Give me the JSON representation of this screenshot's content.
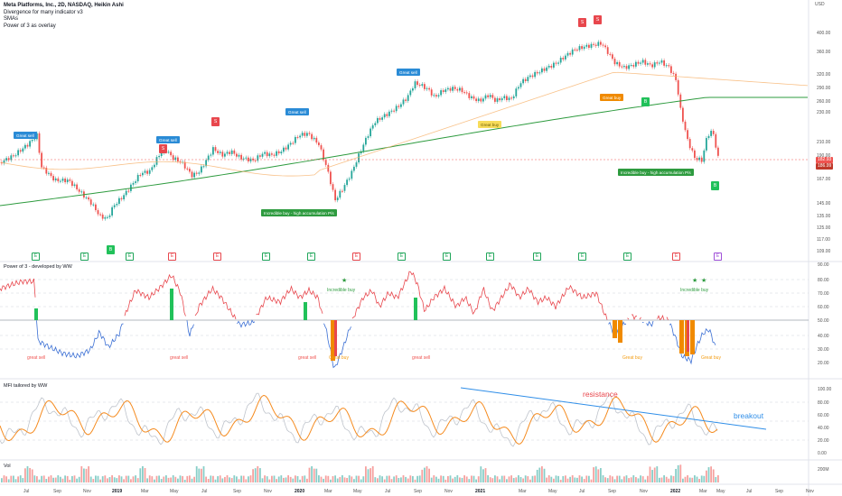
{
  "header": {
    "title": "Meta Platforms, Inc., 2D, NASDAQ, Heikin Ashi",
    "indicators": [
      "Divergence for many indicator v3",
      "SMAs",
      "Power of 3 as overlay"
    ],
    "currency": "USD",
    "price_axis": [
      "400.00",
      "360.00",
      "320.00",
      "290.00",
      "260.00",
      "230.00",
      "210.00",
      "190.00",
      "167.00",
      "145.00",
      "135.00",
      "125.00",
      "117.00",
      "109.00"
    ],
    "last_price": "182.93",
    "last_price_2": "186.99"
  },
  "main_annotations": {
    "great_sell": "Great sell",
    "great_buy": "Great buy",
    "incredible_buy": "Incredible buy - high accumulation P/s",
    "sell_marker": "S",
    "buy_marker": "B",
    "earn_marker": "E"
  },
  "power_pane": {
    "title": "Power of 3 - developed by WW",
    "axis": [
      "90.00",
      "80.00",
      "70.00",
      "60.00",
      "50.00",
      "40.00",
      "30.00",
      "20.00"
    ],
    "labels": {
      "great_sell": "great sell",
      "great_buy": "Great buy",
      "incredible_buy": "Incredible buy",
      "incredible_buy_short": "Incredible buy"
    }
  },
  "mfi_pane": {
    "title": "MFI tailored by WW",
    "axis": [
      "100.00",
      "80.00",
      "60.00",
      "40.00",
      "20.00",
      "0.00"
    ],
    "resistance": "resistance",
    "breakout": "breakout"
  },
  "vol_pane": {
    "title": "Vol",
    "axis": [
      "200M"
    ]
  },
  "time_axis": [
    "Jul",
    "Sep",
    "Nov",
    "2019",
    "Mar",
    "May",
    "Jul",
    "Sep",
    "Nov",
    "2020",
    "Mar",
    "May",
    "Jul",
    "Sep",
    "Nov",
    "2021",
    "Mar",
    "May",
    "Jul",
    "Sep",
    "Nov",
    "2022",
    "Mar",
    "May",
    "Jul",
    "Sep",
    "Nov"
  ],
  "colors": {
    "up": "#26a69a",
    "down": "#ef5350",
    "sma_long": "#2e9b3f",
    "sma_mid": "#f6b26b",
    "mfi_line": "#f58b1f",
    "mfi_gray": "#bfc4cc",
    "trendline": "#2f8ee8"
  }
}
